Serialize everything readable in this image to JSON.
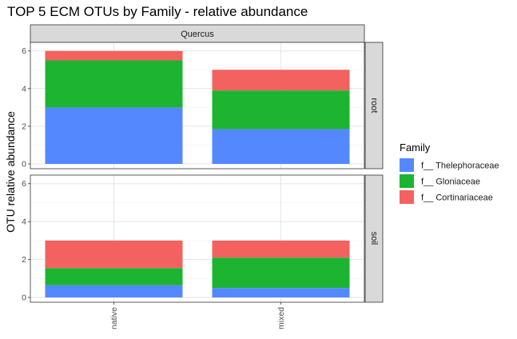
{
  "chart_data": {
    "type": "bar",
    "stacked": true,
    "title": "TOP 5 ECM OTUs by Family - relative abundance",
    "ylabel": "OTU relative abundance",
    "xlabel": "",
    "column_facet": "Quercus",
    "row_facets": [
      "root",
      "soil"
    ],
    "categories": [
      "native",
      "mixed"
    ],
    "ylim": [
      0,
      6.2
    ],
    "yticks": [
      0,
      2,
      4,
      6
    ],
    "grid": true,
    "legend": {
      "title": "Family",
      "placement": "right",
      "entries": [
        "f__ Thelephoraceae",
        "f__ Gloniaceae",
        "f__ Cortinariaceae"
      ]
    },
    "colors": {
      "f__ Thelephoraceae": "#5388FF",
      "f__ Gloniaceae": "#1CB431",
      "f__ Cortinariaceae": "#F4625F"
    },
    "panels": [
      {
        "facet": "root",
        "series": [
          {
            "name": "f__ Thelephoraceae",
            "values": [
              3.0,
              1.85
            ]
          },
          {
            "name": "f__ Gloniaceae",
            "values": [
              2.5,
              2.05
            ]
          },
          {
            "name": "f__ Cortinariaceae",
            "values": [
              0.5,
              1.1
            ]
          }
        ]
      },
      {
        "facet": "soil",
        "series": [
          {
            "name": "f__ Thelephoraceae",
            "values": [
              0.65,
              0.5
            ]
          },
          {
            "name": "f__ Gloniaceae",
            "values": [
              0.9,
              1.6
            ]
          },
          {
            "name": "f__ Cortinariaceae",
            "values": [
              1.45,
              0.9
            ]
          }
        ]
      }
    ]
  }
}
